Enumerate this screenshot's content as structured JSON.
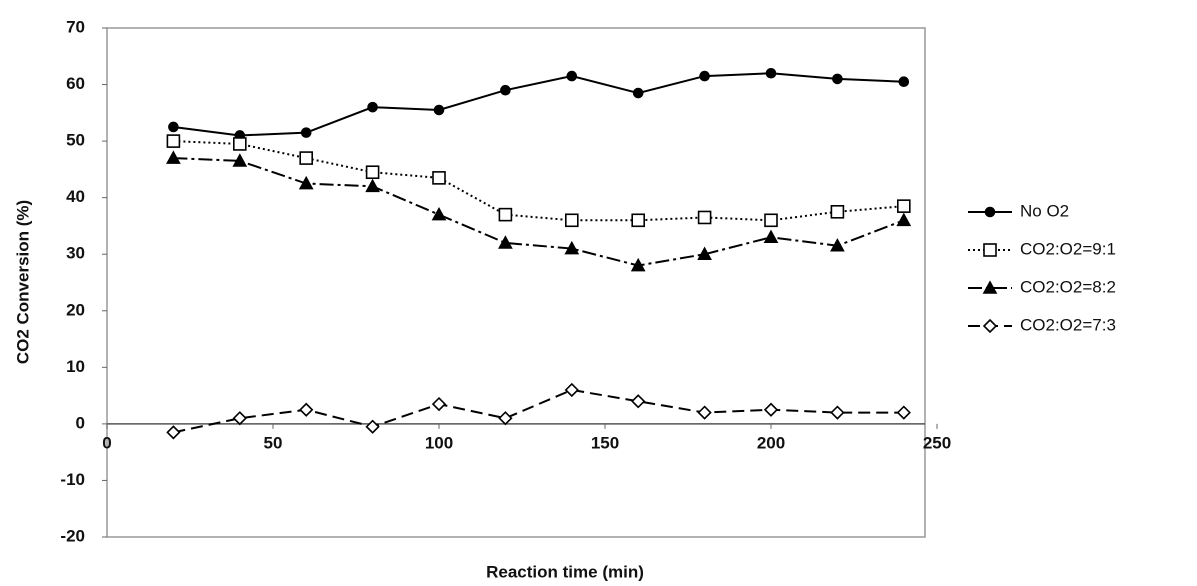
{
  "chart_data": {
    "type": "line",
    "x_label": "Reaction time (min)",
    "y_label": "CO2 Conversion (%)",
    "x": [
      20,
      40,
      60,
      80,
      100,
      120,
      140,
      160,
      180,
      200,
      220,
      240
    ],
    "xlim": [
      0,
      250
    ],
    "xticks": [
      0,
      50,
      100,
      150,
      200,
      250
    ],
    "ylim": [
      -20,
      70
    ],
    "yticks": [
      -20,
      -10,
      0,
      10,
      20,
      30,
      40,
      50,
      60,
      70
    ],
    "legend": "right",
    "series": [
      {
        "name": "No O2",
        "color": "#000000",
        "marker": "circle",
        "line_style": "solid",
        "values": [
          52.5,
          51,
          51.5,
          56,
          55.5,
          59,
          61.5,
          58.5,
          61.5,
          62,
          61,
          60.5
        ]
      },
      {
        "name": "CO2:O2=9:1",
        "color": "#000000",
        "marker": "square",
        "line_style": "dotted",
        "values": [
          50,
          49.5,
          47,
          44.5,
          43.5,
          37,
          36,
          36,
          36.5,
          36,
          37.5,
          38.5
        ]
      },
      {
        "name": "CO2:O2=8:2",
        "color": "#000000",
        "marker": "triangle",
        "line_style": "dashdot",
        "values": [
          47,
          46.5,
          42.5,
          42,
          37,
          32,
          31,
          28,
          30,
          33,
          31.5,
          36
        ]
      },
      {
        "name": "CO2:O2=7:3",
        "color": "#000000",
        "marker": "diamond",
        "line_style": "dashed",
        "values": [
          -1.5,
          1,
          2.5,
          -0.5,
          3.5,
          1,
          6,
          4,
          2,
          2.5,
          2,
          2
        ]
      }
    ]
  }
}
